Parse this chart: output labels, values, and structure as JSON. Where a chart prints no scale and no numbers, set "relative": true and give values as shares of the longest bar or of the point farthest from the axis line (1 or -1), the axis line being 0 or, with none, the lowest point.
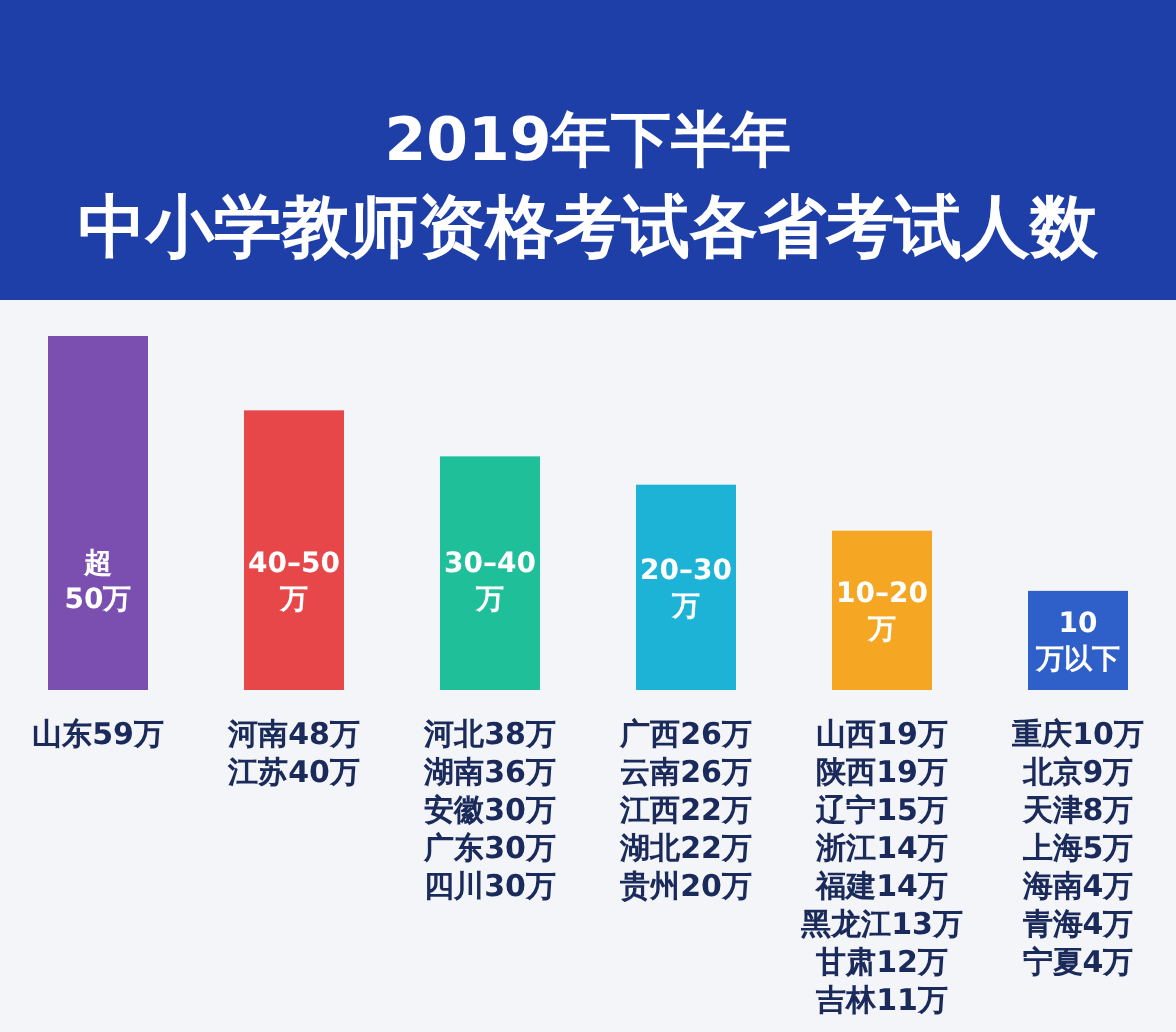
{
  "chart_data": {
    "type": "bar",
    "relative": true,
    "title": "2019年下半年",
    "subtitle": "中小学教师资格考试各省考试人数",
    "categories": [
      "超50万",
      "40–50万",
      "30–40万",
      "20–30万",
      "10–20万",
      "10万以下"
    ],
    "values": [
      1,
      0.79,
      0.66,
      0.58,
      0.45,
      0.28
    ],
    "colors": [
      "#7b4fb0",
      "#e8474a",
      "#1fbf9a",
      "#1cb3d6",
      "#f5a623",
      "#2f5fc8"
    ],
    "annotations": [
      "山东59万",
      "河南48万江苏40万",
      "河北38万湖南36万安徽30万广东30万四川30万",
      "广西26万云南26万江西22万湖北22万贵州20万",
      "山西19万陕西19万辽宁15万浙江14万福建14万黑龙江13万甘肃12万吉林11万",
      "重庆10万北京9万天津8万上海5万海南4万青海4万宁夏4万"
    ]
  }
}
